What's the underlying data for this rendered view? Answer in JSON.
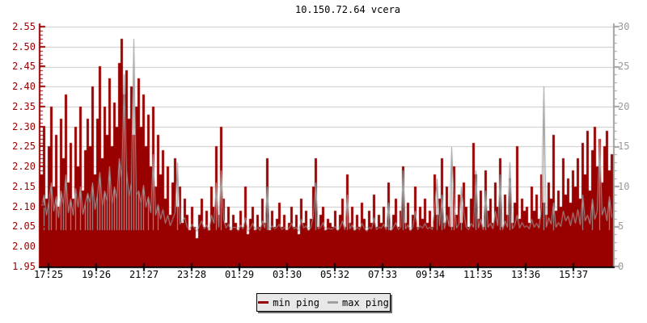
{
  "title": "10.150.72.64 vcera",
  "colors": {
    "min_ping": "#990000",
    "max_ping": "#a0a0a0",
    "grid": "#c8c8c8",
    "right_axis": "#a0a0a0",
    "right_axis_text": "#999999",
    "x_axis": "#000000",
    "legend_bg": "#e8e8e8",
    "background": "#ffffff"
  },
  "legend": {
    "items": [
      {
        "label": "min ping",
        "color": "#990000"
      },
      {
        "label": "max ping",
        "color": "#a0a0a0"
      }
    ]
  },
  "chart_data": {
    "type": "area",
    "subtype": "mrtg-style area (min ping, left axis) with overlaid noisy line (max ping, right axis)",
    "title": "10.150.72.64 vcera",
    "grid": "horizontal gridlines every 0.05 (left axis) / every 2.5 (right axis)",
    "legend_position": "bottom-center boxed",
    "left_axis": {
      "min": 1.95,
      "max": 2.55,
      "step": 0.05,
      "tick_labels": [
        "2.55",
        "2.50",
        "2.45",
        "2.40",
        "2.35",
        "2.30",
        "2.25",
        "2.20",
        "2.15",
        "2.10",
        "2.05",
        "2.00",
        "1.95"
      ]
    },
    "right_axis": {
      "min": 0,
      "max": 30,
      "step": 5,
      "tick_labels": [
        "30",
        "25",
        "20",
        "15",
        "10",
        "5",
        "0"
      ]
    },
    "x_axis": {
      "tick_labels": [
        "17:25",
        "19:26",
        "21:27",
        "23:28",
        "01:29",
        "03:30",
        "05:32",
        "07:33",
        "09:34",
        "11:35",
        "13:36",
        "15:37"
      ],
      "span": "24 hours, ~6-minute samples"
    },
    "series": [
      {
        "name": "min ping",
        "axis": "left",
        "style": "filled-area",
        "color": "#990000",
        "values": [
          2.18,
          2.3,
          2.12,
          2.25,
          2.35,
          2.15,
          2.28,
          2.1,
          2.32,
          2.22,
          2.38,
          2.16,
          2.26,
          2.12,
          2.3,
          2.2,
          2.35,
          2.14,
          2.24,
          2.32,
          2.25,
          2.4,
          2.18,
          2.32,
          2.45,
          2.22,
          2.35,
          2.28,
          2.42,
          2.25,
          2.36,
          2.3,
          2.46,
          2.52,
          2.38,
          2.44,
          2.32,
          2.4,
          2.28,
          2.35,
          2.42,
          2.3,
          2.38,
          2.25,
          2.33,
          2.2,
          2.35,
          2.15,
          2.28,
          2.18,
          2.24,
          2.12,
          2.2,
          2.08,
          2.16,
          2.22,
          2.1,
          2.15,
          2.06,
          2.12,
          2.08,
          2.04,
          2.1,
          2.05,
          2.02,
          2.08,
          2.12,
          2.05,
          2.09,
          2.04,
          2.15,
          2.1,
          2.25,
          2.08,
          2.3,
          2.12,
          2.06,
          2.1,
          2.04,
          2.08,
          2.06,
          2.04,
          2.09,
          2.05,
          2.15,
          2.03,
          2.07,
          2.1,
          2.04,
          2.08,
          2.05,
          2.12,
          2.06,
          2.22,
          2.04,
          2.09,
          2.05,
          2.07,
          2.11,
          2.05,
          2.08,
          2.04,
          2.06,
          2.1,
          2.05,
          2.08,
          2.03,
          2.12,
          2.06,
          2.09,
          2.04,
          2.07,
          2.15,
          2.22,
          2.05,
          2.08,
          2.1,
          2.04,
          2.07,
          2.06,
          2.05,
          2.09,
          2.04,
          2.08,
          2.12,
          2.05,
          2.18,
          2.06,
          2.1,
          2.04,
          2.08,
          2.05,
          2.11,
          2.07,
          2.04,
          2.09,
          2.06,
          2.13,
          2.05,
          2.08,
          2.06,
          2.1,
          2.05,
          2.16,
          2.04,
          2.08,
          2.12,
          2.05,
          2.09,
          2.2,
          2.06,
          2.11,
          2.04,
          2.08,
          2.15,
          2.05,
          2.1,
          2.07,
          2.12,
          2.06,
          2.09,
          2.05,
          2.18,
          2.08,
          2.12,
          2.22,
          2.06,
          2.15,
          2.1,
          2.05,
          2.2,
          2.08,
          2.13,
          2.06,
          2.16,
          2.1,
          2.05,
          2.12,
          2.26,
          2.18,
          2.07,
          2.14,
          2.05,
          2.19,
          2.09,
          2.12,
          2.06,
          2.16,
          2.1,
          2.22,
          2.05,
          2.13,
          2.08,
          2.17,
          2.06,
          2.11,
          2.25,
          2.07,
          2.12,
          2.09,
          2.1,
          2.06,
          2.15,
          2.09,
          2.13,
          2.07,
          2.18,
          2.11,
          2.08,
          2.16,
          2.12,
          2.28,
          2.09,
          2.14,
          2.1,
          2.22,
          2.13,
          2.17,
          2.11,
          2.19,
          2.15,
          2.22,
          2.12,
          2.26,
          2.18,
          2.29,
          2.14,
          2.24,
          2.3,
          2.2,
          2.27,
          2.16,
          2.25,
          2.29,
          2.19,
          2.23
        ]
      },
      {
        "name": "max ping",
        "axis": "right",
        "style": "line",
        "color": "#a0a0a0",
        "values": [
          7.5,
          9.0,
          6.5,
          8.2,
          10.5,
          7.0,
          8.8,
          6.2,
          9.5,
          7.8,
          11.5,
          6.8,
          8.5,
          6.5,
          9.8,
          7.5,
          10.0,
          6.6,
          8.0,
          9.2,
          8.0,
          10.5,
          7.2,
          9.0,
          11.8,
          7.6,
          9.5,
          8.2,
          12.5,
          7.8,
          10.0,
          8.5,
          13.5,
          11.0,
          24.0,
          12.0,
          8.8,
          10.5,
          28.5,
          9.0,
          9.5,
          8.0,
          10.2,
          7.5,
          8.8,
          6.8,
          14.0,
          6.5,
          7.8,
          6.0,
          7.2,
          5.5,
          6.5,
          5.2,
          6.0,
          6.8,
          13.0,
          5.4,
          5.8,
          6.2,
          5.0,
          4.6,
          5.4,
          4.8,
          4.4,
          5.2,
          5.8,
          4.7,
          5.3,
          4.5,
          6.5,
          5.5,
          10.5,
          5.0,
          12.0,
          6.0,
          4.8,
          5.4,
          4.6,
          5.0,
          4.9,
          4.5,
          5.3,
          4.7,
          6.2,
          4.4,
          4.8,
          5.5,
          4.6,
          5.0,
          4.5,
          5.8,
          4.8,
          10.0,
          4.6,
          5.2,
          4.7,
          4.9,
          5.4,
          4.6,
          5.0,
          4.6,
          4.8,
          5.5,
          4.7,
          5.0,
          4.4,
          6.0,
          4.8,
          5.2,
          4.5,
          4.9,
          6.5,
          10.5,
          4.7,
          5.0,
          5.6,
          4.5,
          4.8,
          4.7,
          4.7,
          5.1,
          4.5,
          4.9,
          5.8,
          4.6,
          9.0,
          4.7,
          5.3,
          4.5,
          4.9,
          4.6,
          5.5,
          4.8,
          4.4,
          5.0,
          4.7,
          6.2,
          4.6,
          4.9,
          4.8,
          5.4,
          4.6,
          8.0,
          4.5,
          4.9,
          5.6,
          4.6,
          5.0,
          12.0,
          4.7,
          5.3,
          4.5,
          4.9,
          7.0,
          4.6,
          5.2,
          4.8,
          5.5,
          4.7,
          5.0,
          4.6,
          7.5,
          11.0,
          5.2,
          9.0,
          4.7,
          6.5,
          5.1,
          15.0,
          8.0,
          4.8,
          5.4,
          10.0,
          6.8,
          5.0,
          4.6,
          5.5,
          4.9,
          12.0,
          4.8,
          6.0,
          4.6,
          9.5,
          5.0,
          5.5,
          4.7,
          7.0,
          5.2,
          11.5,
          4.6,
          5.8,
          4.9,
          13.0,
          4.7,
          5.3,
          6.5,
          4.8,
          5.6,
          5.0,
          5.2,
          4.7,
          6.0,
          5.0,
          5.5,
          4.8,
          7.5,
          22.5,
          5.0,
          6.2,
          5.4,
          8.0,
          4.9,
          5.6,
          5.1,
          7.0,
          5.8,
          6.4,
          5.2,
          6.8,
          5.5,
          7.2,
          5.3,
          9.0,
          5.8,
          6.5,
          5.4,
          8.5,
          6.0,
          7.0,
          16.0,
          6.5,
          7.5,
          5.8,
          8.8,
          6.2
        ]
      }
    ]
  }
}
